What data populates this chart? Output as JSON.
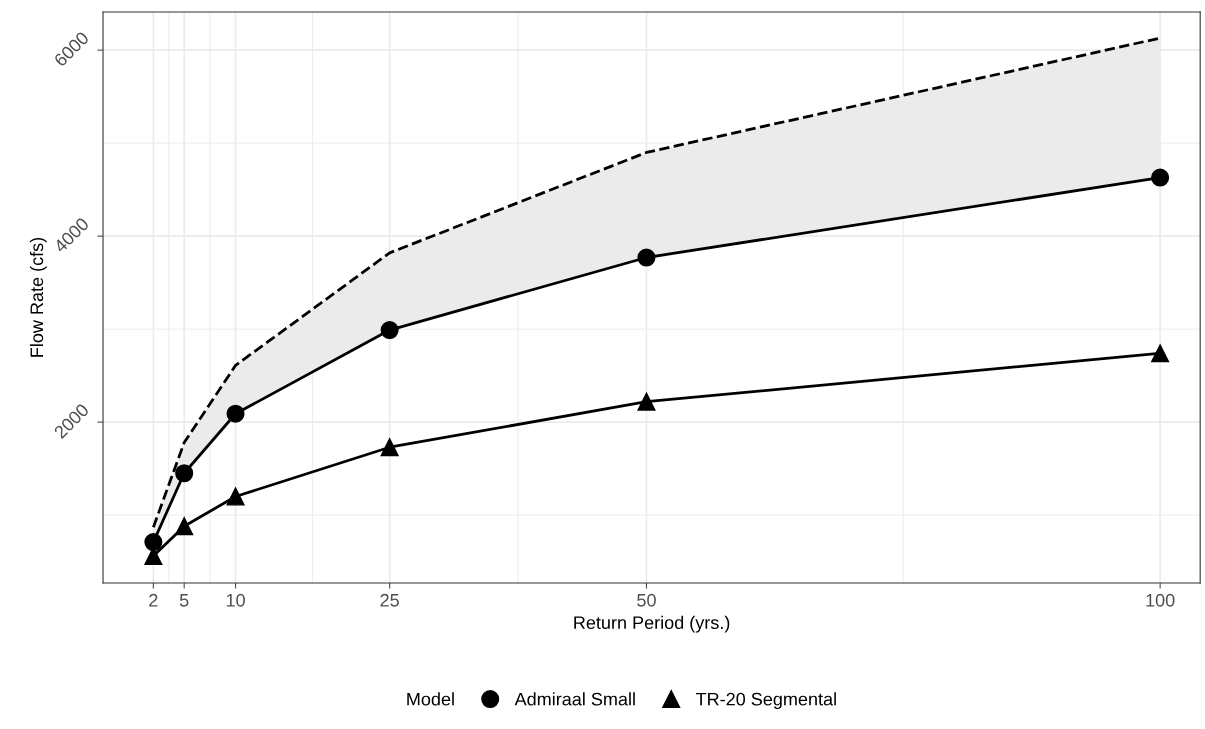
{
  "chart_data": {
    "type": "line",
    "xlabel": "Return Period (yrs.)",
    "ylabel": "Flow Rate (cfs)",
    "legend_title": "Model",
    "x": [
      2,
      5,
      10,
      25,
      50,
      100
    ],
    "series": [
      {
        "name": "Admiraal Small",
        "color": "#000000",
        "marker": "circle",
        "values": [
          710,
          1450,
          2090,
          2990,
          3770,
          4630
        ],
        "lower": [
          710,
          1450,
          2090,
          2990,
          3770,
          4630
        ],
        "upper": [
          870,
          1780,
          2610,
          3820,
          4900,
          6130
        ]
      },
      {
        "name": "TR-20 Segmental",
        "color": "#000000",
        "marker": "triangle",
        "values": [
          560,
          880,
          1200,
          1730,
          2220,
          2740
        ]
      },
      {
        "color": "#000000",
        "marker": "none",
        "line_style": "dashed",
        "values": [
          870,
          1780,
          2610,
          3820,
          4900,
          6130
        ]
      }
    ],
    "xlim": [
      -2.9,
      103.9
    ],
    "ylim": [
      270,
      6410
    ],
    "xticks": [
      2,
      5,
      10,
      25,
      50,
      100
    ],
    "yticks": [
      2000,
      4000,
      6000
    ],
    "grid": true,
    "legend": "bottom",
    "line_style": "solid"
  }
}
